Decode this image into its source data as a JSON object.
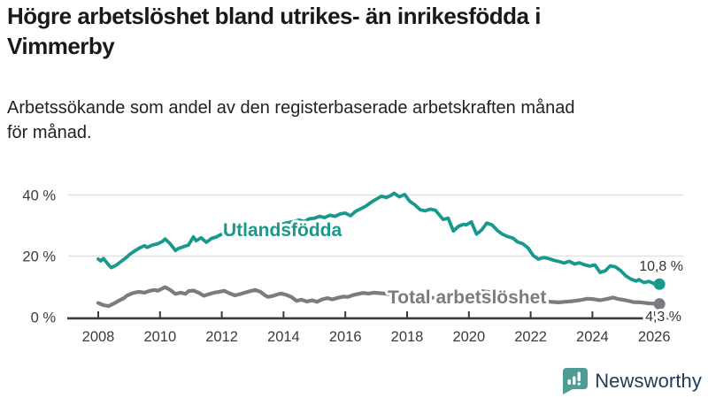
{
  "header": {
    "title_lines": [
      "Högre arbetslöshet bland utrikes- än inrikesfödda i",
      "Vimmerby"
    ],
    "subtitle_lines": [
      "Arbetssökande som andel av den registerbaserade arbetskraften månad",
      "för månad."
    ]
  },
  "footer": {
    "brand": "Newsworthy"
  },
  "colors": {
    "teal": "#17998C",
    "gray": "#7C7C80",
    "axis": "#3B3B3B",
    "grid": "#E2E2E2",
    "tick_text": "#3B3B3B",
    "brand_navy": "#1E3A56",
    "brand_teal": "#4F9C92"
  },
  "chart_data": {
    "type": "line",
    "title": "Högre arbetslöshet bland utrikes- än inrikesfödda i Vimmerby",
    "subtitle": "Arbetssökande som andel av den registerbaserade arbetskraften månad för månad.",
    "grid": "horizontal",
    "legend": "inline-labels",
    "x_axis": {
      "ticks": [
        2008,
        2010,
        2012,
        2014,
        2016,
        2018,
        2020,
        2022,
        2024,
        2026
      ],
      "range": [
        2007.8,
        2026.6
      ]
    },
    "y_axis": {
      "tick_values": [
        0,
        20,
        40
      ],
      "tick_labels": [
        "0 %",
        "20 %",
        "40 %"
      ],
      "unit": "%",
      "range": [
        0,
        43
      ]
    },
    "series": [
      {
        "name": "Utlandsfödda",
        "color": "#17998C",
        "end_label": "10,8 %",
        "end_value": 10.8,
        "points": [
          [
            2008.0,
            19.0
          ],
          [
            2008.08,
            18.4
          ],
          [
            2008.17,
            19.2
          ],
          [
            2008.33,
            17.2
          ],
          [
            2008.42,
            16.2
          ],
          [
            2008.58,
            17.0
          ],
          [
            2008.75,
            18.3
          ],
          [
            2008.92,
            19.6
          ],
          [
            2009.0,
            20.4
          ],
          [
            2009.17,
            21.6
          ],
          [
            2009.33,
            22.6
          ],
          [
            2009.5,
            23.4
          ],
          [
            2009.58,
            22.8
          ],
          [
            2009.75,
            23.6
          ],
          [
            2009.92,
            24.0
          ],
          [
            2010.08,
            24.8
          ],
          [
            2010.17,
            25.6
          ],
          [
            2010.33,
            24.0
          ],
          [
            2010.5,
            21.8
          ],
          [
            2010.58,
            22.4
          ],
          [
            2010.75,
            23.0
          ],
          [
            2010.92,
            23.6
          ],
          [
            2011.08,
            26.3
          ],
          [
            2011.17,
            25.0
          ],
          [
            2011.33,
            26.0
          ],
          [
            2011.5,
            24.5
          ],
          [
            2011.67,
            25.8
          ],
          [
            2011.83,
            26.3
          ],
          [
            2012.0,
            27.2
          ],
          [
            2012.17,
            27.8
          ],
          [
            2012.33,
            27.4
          ],
          [
            2012.5,
            27.8
          ],
          [
            2012.67,
            28.4
          ],
          [
            2012.83,
            28.0
          ],
          [
            2013.0,
            28.8
          ],
          [
            2013.17,
            29.2
          ],
          [
            2013.33,
            28.8
          ],
          [
            2013.5,
            29.4
          ],
          [
            2013.67,
            29.8
          ],
          [
            2013.83,
            30.2
          ],
          [
            2014.0,
            30.6
          ],
          [
            2014.17,
            31.0
          ],
          [
            2014.33,
            31.3
          ],
          [
            2014.5,
            31.8
          ],
          [
            2014.67,
            31.3
          ],
          [
            2014.83,
            32.2
          ],
          [
            2015.0,
            32.4
          ],
          [
            2015.17,
            33.0
          ],
          [
            2015.33,
            32.6
          ],
          [
            2015.5,
            33.4
          ],
          [
            2015.67,
            33.0
          ],
          [
            2015.83,
            33.8
          ],
          [
            2016.0,
            34.1
          ],
          [
            2016.17,
            33.2
          ],
          [
            2016.33,
            34.6
          ],
          [
            2016.5,
            35.5
          ],
          [
            2016.67,
            36.4
          ],
          [
            2016.83,
            37.6
          ],
          [
            2017.0,
            38.6
          ],
          [
            2017.17,
            39.6
          ],
          [
            2017.33,
            39.2
          ],
          [
            2017.5,
            40.0
          ],
          [
            2017.58,
            40.6
          ],
          [
            2017.75,
            39.4
          ],
          [
            2017.92,
            40.2
          ],
          [
            2018.08,
            38.0
          ],
          [
            2018.25,
            36.8
          ],
          [
            2018.42,
            35.2
          ],
          [
            2018.58,
            34.8
          ],
          [
            2018.75,
            35.4
          ],
          [
            2018.92,
            35.0
          ],
          [
            2019.08,
            33.0
          ],
          [
            2019.17,
            32.0
          ],
          [
            2019.33,
            32.4
          ],
          [
            2019.5,
            28.2
          ],
          [
            2019.67,
            29.8
          ],
          [
            2019.83,
            30.4
          ],
          [
            2019.92,
            30.2
          ],
          [
            2020.08,
            31.2
          ],
          [
            2020.25,
            27.2
          ],
          [
            2020.42,
            28.6
          ],
          [
            2020.58,
            30.8
          ],
          [
            2020.75,
            30.2
          ],
          [
            2020.92,
            28.4
          ],
          [
            2021.08,
            27.2
          ],
          [
            2021.25,
            26.4
          ],
          [
            2021.42,
            25.9
          ],
          [
            2021.58,
            24.6
          ],
          [
            2021.75,
            24.0
          ],
          [
            2021.92,
            22.6
          ],
          [
            2022.08,
            20.2
          ],
          [
            2022.25,
            19.0
          ],
          [
            2022.42,
            19.5
          ],
          [
            2022.58,
            19.2
          ],
          [
            2022.75,
            18.6
          ],
          [
            2022.92,
            18.2
          ],
          [
            2023.08,
            17.7
          ],
          [
            2023.25,
            18.3
          ],
          [
            2023.42,
            17.4
          ],
          [
            2023.58,
            17.8
          ],
          [
            2023.75,
            17.1
          ],
          [
            2023.92,
            16.7
          ],
          [
            2024.08,
            17.1
          ],
          [
            2024.25,
            14.6
          ],
          [
            2024.42,
            15.2
          ],
          [
            2024.58,
            16.8
          ],
          [
            2024.75,
            16.4
          ],
          [
            2024.92,
            15.2
          ],
          [
            2025.08,
            13.5
          ],
          [
            2025.25,
            12.4
          ],
          [
            2025.42,
            11.8
          ],
          [
            2025.5,
            12.3
          ],
          [
            2025.67,
            11.3
          ],
          [
            2025.83,
            11.7
          ],
          [
            2026.0,
            10.9
          ],
          [
            2026.17,
            10.8
          ]
        ]
      },
      {
        "name": "Total arbetslöshet",
        "color": "#7C7C80",
        "end_label": "4,3 %",
        "end_value": 4.3,
        "points": [
          [
            2008.0,
            4.6
          ],
          [
            2008.17,
            3.9
          ],
          [
            2008.33,
            3.6
          ],
          [
            2008.5,
            4.4
          ],
          [
            2008.67,
            5.4
          ],
          [
            2008.83,
            6.2
          ],
          [
            2008.92,
            7.0
          ],
          [
            2009.08,
            7.7
          ],
          [
            2009.17,
            8.0
          ],
          [
            2009.33,
            8.3
          ],
          [
            2009.5,
            8.0
          ],
          [
            2009.67,
            8.6
          ],
          [
            2009.83,
            8.9
          ],
          [
            2009.92,
            8.6
          ],
          [
            2010.08,
            9.4
          ],
          [
            2010.17,
            9.8
          ],
          [
            2010.33,
            8.9
          ],
          [
            2010.5,
            7.6
          ],
          [
            2010.67,
            8.0
          ],
          [
            2010.83,
            7.6
          ],
          [
            2010.92,
            8.5
          ],
          [
            2011.08,
            8.7
          ],
          [
            2011.25,
            8.0
          ],
          [
            2011.42,
            7.0
          ],
          [
            2011.58,
            7.5
          ],
          [
            2011.75,
            8.0
          ],
          [
            2011.92,
            8.3
          ],
          [
            2012.08,
            8.6
          ],
          [
            2012.25,
            7.8
          ],
          [
            2012.42,
            7.1
          ],
          [
            2012.58,
            7.5
          ],
          [
            2012.75,
            8.0
          ],
          [
            2012.92,
            8.5
          ],
          [
            2013.08,
            8.9
          ],
          [
            2013.25,
            8.3
          ],
          [
            2013.42,
            7.0
          ],
          [
            2013.5,
            6.6
          ],
          [
            2013.67,
            7.0
          ],
          [
            2013.83,
            7.5
          ],
          [
            2013.92,
            7.7
          ],
          [
            2014.08,
            7.3
          ],
          [
            2014.25,
            6.6
          ],
          [
            2014.42,
            5.3
          ],
          [
            2014.58,
            5.7
          ],
          [
            2014.75,
            5.1
          ],
          [
            2014.92,
            5.5
          ],
          [
            2015.08,
            5.0
          ],
          [
            2015.25,
            5.8
          ],
          [
            2015.42,
            6.2
          ],
          [
            2015.58,
            5.8
          ],
          [
            2015.75,
            6.3
          ],
          [
            2015.92,
            6.7
          ],
          [
            2016.08,
            6.6
          ],
          [
            2016.25,
            7.2
          ],
          [
            2016.42,
            7.6
          ],
          [
            2016.58,
            7.9
          ],
          [
            2016.75,
            7.7
          ],
          [
            2016.92,
            8.0
          ],
          [
            2017.17,
            7.8
          ],
          [
            2017.42,
            7.5
          ],
          [
            2017.67,
            7.2
          ],
          [
            2017.92,
            7.0
          ],
          [
            2018.17,
            6.8
          ],
          [
            2018.42,
            6.6
          ],
          [
            2018.67,
            6.4
          ],
          [
            2018.92,
            6.3
          ],
          [
            2019.17,
            6.2
          ],
          [
            2019.42,
            6.4
          ],
          [
            2019.67,
            6.5
          ],
          [
            2019.92,
            6.7
          ],
          [
            2020.17,
            7.6
          ],
          [
            2020.42,
            8.5
          ],
          [
            2020.67,
            8.2
          ],
          [
            2020.92,
            7.8
          ],
          [
            2021.17,
            7.2
          ],
          [
            2021.42,
            6.8
          ],
          [
            2021.67,
            6.3
          ],
          [
            2021.92,
            5.8
          ],
          [
            2022.17,
            5.4
          ],
          [
            2022.42,
            5.2
          ],
          [
            2022.67,
            5.0
          ],
          [
            2022.92,
            4.8
          ],
          [
            2023.08,
            5.0
          ],
          [
            2023.33,
            5.2
          ],
          [
            2023.58,
            5.5
          ],
          [
            2023.83,
            6.0
          ],
          [
            2024.0,
            5.9
          ],
          [
            2024.25,
            5.5
          ],
          [
            2024.5,
            6.0
          ],
          [
            2024.67,
            6.4
          ],
          [
            2024.83,
            5.9
          ],
          [
            2025.08,
            5.5
          ],
          [
            2025.33,
            4.9
          ],
          [
            2025.58,
            4.8
          ],
          [
            2025.83,
            4.5
          ],
          [
            2026.0,
            4.4
          ],
          [
            2026.17,
            4.3
          ]
        ]
      }
    ]
  }
}
